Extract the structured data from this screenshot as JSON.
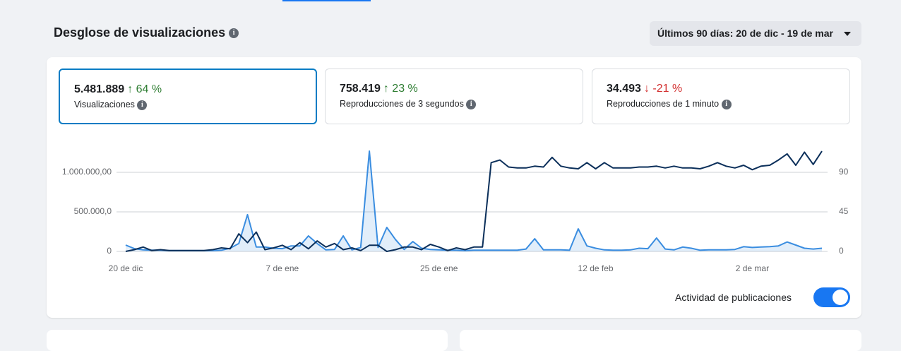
{
  "header": {
    "title": "Desglose de visualizaciones",
    "date_range": "Últimos 90 días: 20 de dic - 19 de mar"
  },
  "metrics": [
    {
      "value": "5.481.889",
      "change": "↑ 64 %",
      "color": "#2e7d32",
      "label": "Visualizaciones"
    },
    {
      "value": "758.419",
      "change": "↑ 23 %",
      "color": "#2e7d32",
      "label": "Reproducciones de 3 segundos"
    },
    {
      "value": "34.493",
      "change": "↓ -21 %",
      "color": "#d32f2f",
      "label": "Reproducciones de 1 minuto"
    }
  ],
  "toggle": {
    "label": "Actividad de publicaciones",
    "on": true
  },
  "chart_data": {
    "type": "line",
    "xlim": [
      0,
      80
    ],
    "xticks": [
      {
        "value": 0,
        "label": "20 de dic"
      },
      {
        "value": 18,
        "label": "7 de ene"
      },
      {
        "value": 36,
        "label": "25 de ene"
      },
      {
        "value": 54,
        "label": "12 de feb"
      },
      {
        "value": 72,
        "label": "2 de mar"
      }
    ],
    "ylim": [
      0,
      1350000
    ],
    "yticks": [
      0,
      {
        "value": 500000,
        "label": "500.000,0"
      },
      {
        "value": 1000000,
        "label": "1.000.000,00"
      }
    ],
    "y2lim": [
      0,
      121.5
    ],
    "y2ticks": [
      0,
      45,
      90
    ],
    "grid": true,
    "series": [
      {
        "color": "#3a8de0",
        "fill": true,
        "values": [
          80000,
          35000,
          20000,
          15000,
          15000,
          10000,
          10000,
          10000,
          10000,
          10000,
          10000,
          15000,
          40000,
          100000,
          464000,
          55000,
          55000,
          40000,
          35000,
          70000,
          70000,
          196000,
          100000,
          20000,
          25000,
          196000,
          20000,
          50000,
          1268000,
          50000,
          304000,
          150000,
          25000,
          125000,
          40000,
          25000,
          20000,
          15000,
          15000,
          10000,
          15000,
          15000,
          15000,
          15000,
          15000,
          15000,
          30000,
          161000,
          20000,
          20000,
          20000,
          15000,
          286000,
          70000,
          40000,
          20000,
          15000,
          15000,
          20000,
          40000,
          35000,
          170000,
          30000,
          20000,
          55000,
          40000,
          15000,
          20000,
          20000,
          20000,
          25000,
          60000,
          50000,
          55000,
          60000,
          70000,
          120000,
          80000,
          40000,
          30000,
          40000
        ]
      },
      {
        "color": "#0b2f5a",
        "axis": "y2",
        "values": [
          0,
          2,
          5,
          1,
          2,
          1,
          1,
          1,
          1,
          1,
          2,
          4,
          3,
          20,
          10,
          22,
          2,
          4,
          7,
          2,
          10,
          3,
          12,
          5,
          9,
          2,
          4,
          1,
          7,
          7,
          0,
          2,
          5,
          5,
          2,
          8,
          5,
          1,
          4,
          2,
          5,
          5,
          101,
          104,
          96,
          95,
          95,
          97,
          96,
          107,
          97,
          95,
          94,
          101,
          94,
          101,
          95,
          95,
          95,
          96,
          96,
          97,
          95,
          97,
          95,
          95,
          94,
          97,
          101,
          97,
          95,
          98,
          93,
          97,
          98,
          104,
          111,
          98,
          113,
          99,
          114
        ]
      }
    ]
  }
}
